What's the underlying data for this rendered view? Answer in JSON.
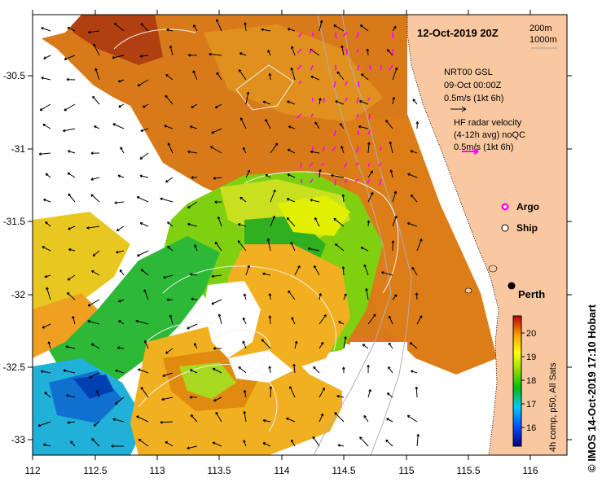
{
  "title": "12-Oct-2019 20Z",
  "isobaths": [
    "200m",
    "1000m"
  ],
  "nrt": {
    "line1": "NRT00 GSL",
    "line2": "09-Oct 00:00Z",
    "line3": "0.5m/s (1kt 6h)"
  },
  "hf_radar": {
    "line1": "HF radar velocity",
    "line2": "(4-12h avg) noQC",
    "line3": "0.5m/s (1kt 6h)"
  },
  "legend": {
    "argo": "Argo",
    "ship": "Ship"
  },
  "place": "Perth",
  "colorbar": {
    "ticks": [
      "20",
      "19",
      "18",
      "17",
      "16"
    ],
    "label": "4h comp, p50, All Sats"
  },
  "credit": "© IMOS 14-Oct-2019 17:10 Hobart",
  "axes": {
    "x_ticks": [
      "112",
      "112.5",
      "113",
      "113.5",
      "114",
      "114.5",
      "115",
      "115.5",
      "116"
    ],
    "y_ticks": [
      "-30.5",
      "-31",
      "-31.5",
      "-32",
      "-32.5",
      "-33"
    ]
  },
  "colors": {
    "land": "#f9c8a0",
    "argo": "#ff00ff",
    "hf_arrow": "#ff00ff"
  }
}
